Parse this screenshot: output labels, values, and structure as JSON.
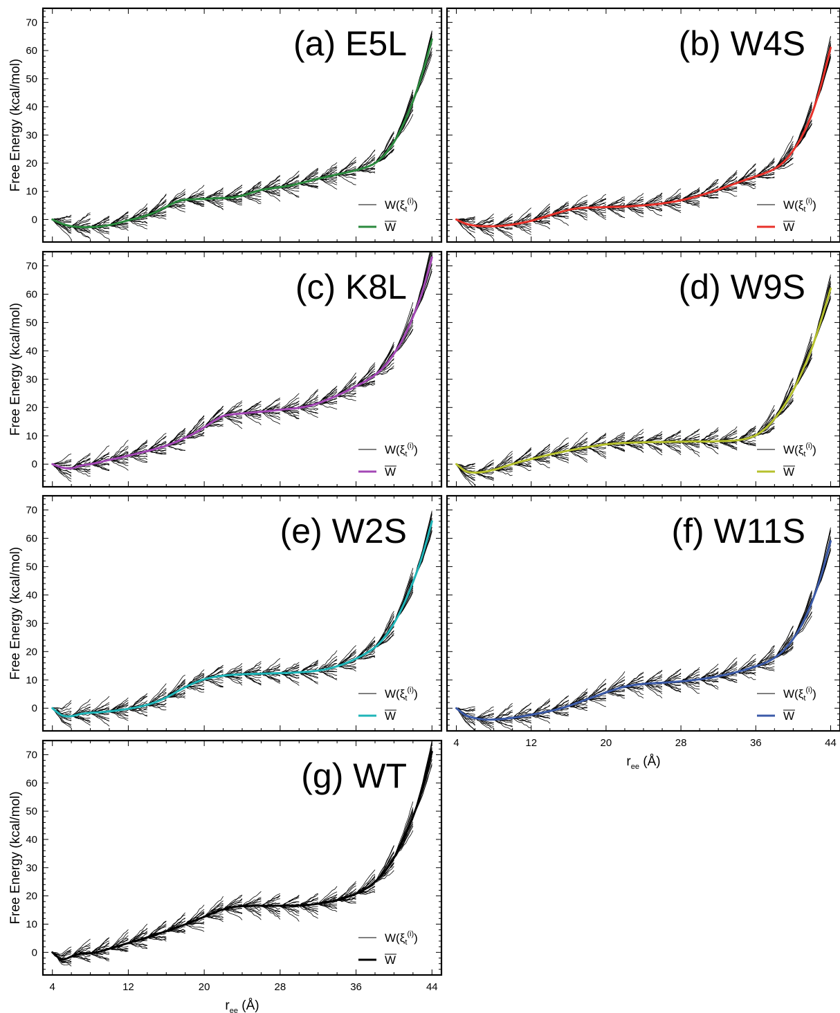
{
  "figure": {
    "ylabel": "Free Energy (kcal/mol)",
    "xlabel_main": "r",
    "xlabel_sub": "ee",
    "xlabel_unit": " (Å)",
    "legend_samples_main": "W(ξ",
    "legend_samples_sub": "t",
    "legend_samples_sup": "(i)",
    "legend_samples_close": ")",
    "legend_mean": "W"
  },
  "chart_data": [
    {
      "type": "line",
      "title": "(a) E5L",
      "color": "#2b8a3e",
      "xlim": [
        3,
        45
      ],
      "ylim": [
        -8,
        75
      ],
      "xticks": [
        4,
        12,
        20,
        28,
        36,
        44
      ],
      "yticks": [
        0,
        10,
        20,
        30,
        40,
        50,
        60,
        70
      ],
      "series": [
        {
          "name": "W",
          "x": [
            4,
            5,
            6,
            7,
            8,
            9,
            10,
            11,
            12,
            13,
            14,
            15,
            16,
            17,
            18,
            19,
            20,
            21,
            22,
            23,
            24,
            25,
            26,
            27,
            28,
            29,
            30,
            31,
            32,
            33,
            34,
            35,
            36,
            37,
            38,
            39,
            40,
            41,
            42,
            43,
            44
          ],
          "values": [
            0,
            -1.5,
            -2.4,
            -2.7,
            -2.7,
            -2.5,
            -2,
            -1.2,
            -0.3,
            0.5,
            1.5,
            2.8,
            4.5,
            6.2,
            7,
            7.2,
            7.3,
            7.5,
            7.6,
            7.8,
            8.5,
            9.5,
            10.5,
            11,
            11.5,
            12,
            12.8,
            13.6,
            14.5,
            15.2,
            16,
            16.7,
            17.5,
            18.5,
            20,
            23,
            27.5,
            34,
            42,
            52,
            64
          ]
        }
      ]
    },
    {
      "type": "line",
      "title": "(b) W4S",
      "color": "#e8312a",
      "xlim": [
        3,
        45
      ],
      "ylim": [
        -8,
        75
      ],
      "xticks": [
        4,
        12,
        20,
        28,
        36,
        44
      ],
      "yticks": [
        0,
        10,
        20,
        30,
        40,
        50,
        60,
        70
      ],
      "series": [
        {
          "name": "W",
          "x": [
            4,
            5,
            6,
            7,
            8,
            9,
            10,
            11,
            12,
            13,
            14,
            15,
            16,
            17,
            18,
            19,
            20,
            21,
            22,
            23,
            24,
            25,
            26,
            27,
            28,
            29,
            30,
            31,
            32,
            33,
            34,
            35,
            36,
            37,
            38,
            39,
            40,
            41,
            42,
            43,
            44
          ],
          "values": [
            0,
            -1.5,
            -2.2,
            -2.4,
            -2.4,
            -2.2,
            -1.8,
            -1.2,
            -0.5,
            0.5,
            1.5,
            2.5,
            3.4,
            4,
            4.2,
            4.3,
            4.4,
            4.5,
            4.6,
            4.8,
            5,
            5.3,
            5.7,
            6.2,
            6.8,
            7.6,
            8.5,
            9.5,
            10.6,
            11.8,
            13,
            14.2,
            15.3,
            16.5,
            18,
            20.5,
            24.5,
            30,
            37.5,
            48,
            61
          ]
        }
      ]
    },
    {
      "type": "line",
      "title": "(c) K8L",
      "color": "#a347b5",
      "xlim": [
        3,
        45
      ],
      "ylim": [
        -8,
        75
      ],
      "xticks": [
        4,
        12,
        20,
        28,
        36,
        44
      ],
      "yticks": [
        0,
        10,
        20,
        30,
        40,
        50,
        60,
        70
      ],
      "series": [
        {
          "name": "W",
          "x": [
            4,
            5,
            6,
            7,
            8,
            9,
            10,
            11,
            12,
            13,
            14,
            15,
            16,
            17,
            18,
            19,
            20,
            21,
            22,
            23,
            24,
            25,
            26,
            27,
            28,
            29,
            30,
            31,
            32,
            33,
            34,
            35,
            36,
            37,
            38,
            39,
            40,
            41,
            42,
            43,
            44
          ],
          "values": [
            0,
            -1.2,
            -1.5,
            -0.5,
            0,
            0.7,
            1.5,
            2.2,
            3,
            3.8,
            4.6,
            5.5,
            6.5,
            7.8,
            9.3,
            11,
            13,
            15.2,
            17,
            17.6,
            17.9,
            18.2,
            18.5,
            18.8,
            19.2,
            19.5,
            19.9,
            20.5,
            21.5,
            22.8,
            24.2,
            25.8,
            27.5,
            29.3,
            31.5,
            34.5,
            39,
            44.5,
            52,
            61,
            73
          ]
        }
      ]
    },
    {
      "type": "line",
      "title": "(d) W9S",
      "color": "#b6c12d",
      "xlim": [
        3,
        45
      ],
      "ylim": [
        -8,
        75
      ],
      "xticks": [
        4,
        12,
        20,
        28,
        36,
        44
      ],
      "yticks": [
        0,
        10,
        20,
        30,
        40,
        50,
        60,
        70
      ],
      "series": [
        {
          "name": "W",
          "x": [
            4,
            5,
            6,
            7,
            8,
            9,
            10,
            11,
            12,
            13,
            14,
            15,
            16,
            17,
            18,
            19,
            20,
            21,
            22,
            23,
            24,
            25,
            26,
            27,
            28,
            29,
            30,
            31,
            32,
            33,
            34,
            35,
            36,
            37,
            38,
            39,
            40,
            41,
            42,
            43,
            44
          ],
          "values": [
            0,
            -2.5,
            -3,
            -2.7,
            -2,
            -1,
            0,
            1,
            1.8,
            2.6,
            3.4,
            4.1,
            4.8,
            5.4,
            6,
            6.5,
            7,
            7.3,
            7.5,
            7.6,
            7.7,
            7.8,
            7.8,
            7.9,
            7.9,
            8,
            8,
            8,
            8.1,
            8.2,
            8.4,
            9,
            10.2,
            12.5,
            16,
            20.5,
            26,
            33,
            41,
            51,
            62
          ]
        }
      ]
    },
    {
      "type": "line",
      "title": "(e) W2S",
      "color": "#1fb5b8",
      "xlim": [
        3,
        45
      ],
      "ylim": [
        -8,
        75
      ],
      "xticks": [
        4,
        12,
        20,
        28,
        36,
        44
      ],
      "yticks": [
        0,
        10,
        20,
        30,
        40,
        50,
        60,
        70
      ],
      "series": [
        {
          "name": "W",
          "x": [
            4,
            5,
            6,
            7,
            8,
            9,
            10,
            11,
            12,
            13,
            14,
            15,
            16,
            17,
            18,
            19,
            20,
            21,
            22,
            23,
            24,
            25,
            26,
            27,
            28,
            29,
            30,
            31,
            32,
            33,
            34,
            35,
            36,
            37,
            38,
            39,
            40,
            41,
            42,
            43,
            44
          ],
          "values": [
            0,
            -2.5,
            -2.8,
            -2,
            -1.6,
            -1.4,
            -1.1,
            -0.7,
            -0.2,
            0.4,
            1.2,
            2.3,
            3.8,
            5.6,
            7.4,
            9,
            10.2,
            11,
            11.5,
            11.8,
            12,
            12.1,
            12.2,
            12.3,
            12.4,
            12.5,
            12.7,
            12.9,
            13.3,
            13.9,
            14.8,
            16,
            17.5,
            19.3,
            21.5,
            25,
            30,
            36.5,
            44.5,
            54,
            66
          ]
        }
      ]
    },
    {
      "type": "line",
      "title": "(f) W11S",
      "color": "#3b5aa8",
      "xlim": [
        3,
        45
      ],
      "ylim": [
        -8,
        75
      ],
      "xticks": [
        4,
        12,
        20,
        28,
        36,
        44
      ],
      "yticks": [
        0,
        10,
        20,
        30,
        40,
        50,
        60,
        70
      ],
      "xlabel": "r_ee (Å)",
      "series": [
        {
          "name": "W",
          "x": [
            4,
            5,
            6,
            7,
            8,
            9,
            10,
            11,
            12,
            13,
            14,
            15,
            16,
            17,
            18,
            19,
            20,
            21,
            22,
            23,
            24,
            25,
            26,
            27,
            28,
            29,
            30,
            31,
            32,
            33,
            34,
            35,
            36,
            37,
            38,
            39,
            40,
            41,
            42,
            43,
            44
          ],
          "values": [
            0,
            -2.5,
            -3.5,
            -4,
            -4,
            -3.8,
            -3.4,
            -2.9,
            -2.3,
            -1.7,
            -1,
            -0.2,
            0.8,
            2,
            3.2,
            4.4,
            5.6,
            6.7,
            7.6,
            8.2,
            8.6,
            8.8,
            9,
            9.2,
            9.5,
            9.8,
            10.2,
            10.7,
            11.3,
            12,
            12.8,
            13.7,
            14.8,
            16,
            17.8,
            20.5,
            24.5,
            30,
            37.5,
            47,
            59
          ]
        }
      ]
    },
    {
      "type": "line",
      "title": "(g) WT",
      "color": "#000000",
      "xlim": [
        3,
        45
      ],
      "ylim": [
        -8,
        75
      ],
      "xticks": [
        4,
        12,
        20,
        28,
        36,
        44
      ],
      "yticks": [
        0,
        10,
        20,
        30,
        40,
        50,
        60,
        70
      ],
      "xlabel": "r_ee (Å)",
      "series": [
        {
          "name": "W",
          "x": [
            4,
            5,
            6,
            7,
            8,
            9,
            10,
            11,
            12,
            13,
            14,
            15,
            16,
            17,
            18,
            19,
            20,
            21,
            22,
            23,
            24,
            25,
            26,
            27,
            28,
            29,
            30,
            31,
            32,
            33,
            34,
            35,
            36,
            37,
            38,
            39,
            40,
            41,
            42,
            43,
            44
          ],
          "values": [
            0,
            -2.5,
            -1.5,
            -0.4,
            -0.3,
            0.3,
            1.3,
            2.3,
            3.3,
            4.3,
            5.3,
            6.4,
            7.5,
            8.7,
            9.9,
            11.2,
            12.6,
            14,
            15.2,
            16,
            16.4,
            16.5,
            16.5,
            16.5,
            16.5,
            16.5,
            16.6,
            16.8,
            17.2,
            17.8,
            18.5,
            19.5,
            20.8,
            22.5,
            25,
            28.5,
            33.5,
            40,
            48,
            58,
            71
          ]
        }
      ]
    }
  ]
}
